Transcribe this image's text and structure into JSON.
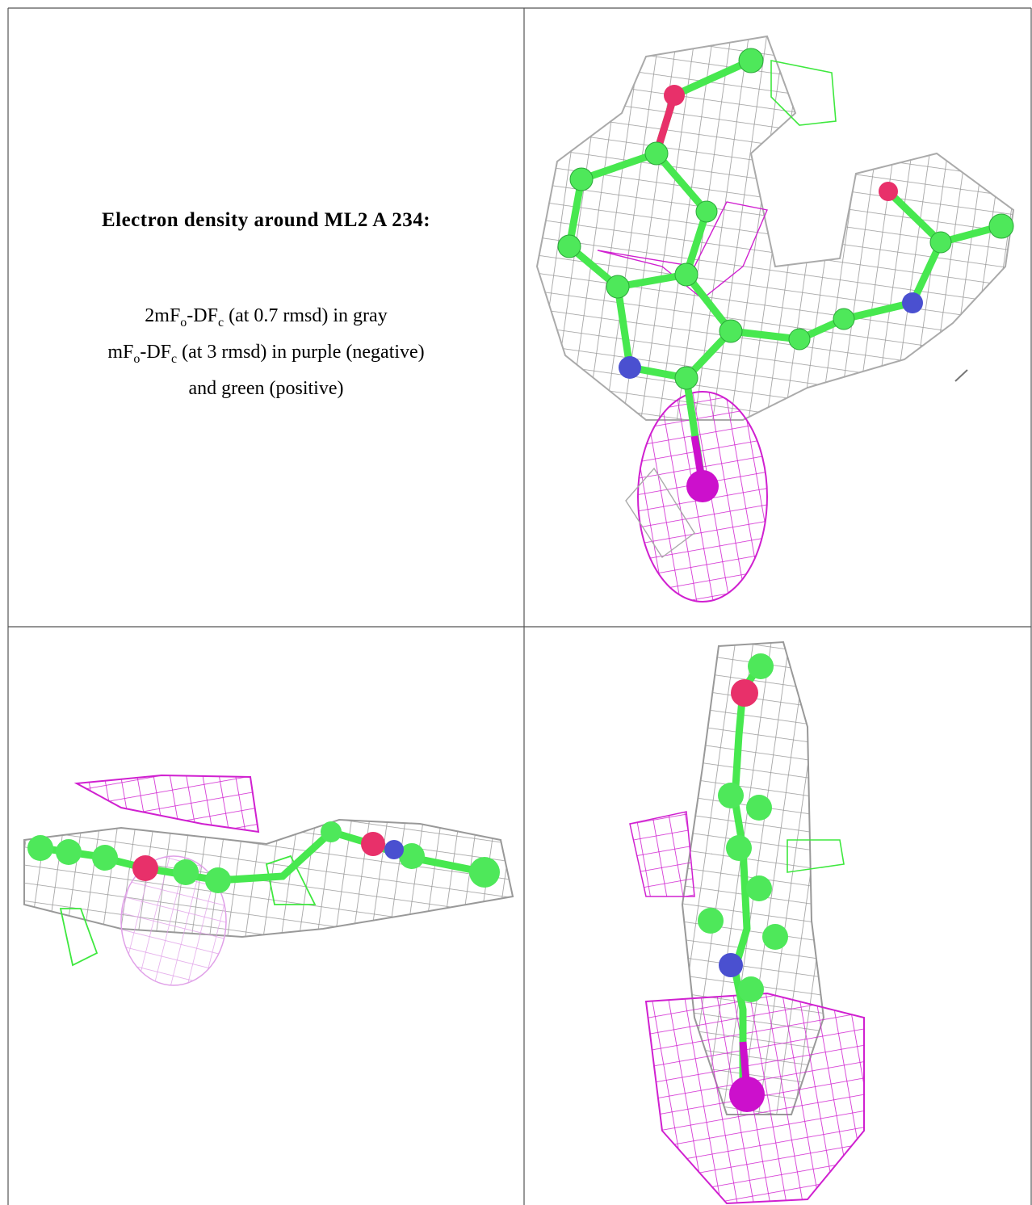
{
  "caption": {
    "title": "Electron density around ML2 A 234:",
    "lines": [
      [
        "2mF",
        "o",
        "-DF",
        "c",
        " (at 0.7 rmsd) in gray"
      ],
      [
        "mF",
        "o",
        "-DF",
        "c",
        " (at 3 rmsd) in purple (negative)"
      ],
      [
        "and green (positive)"
      ]
    ]
  }
}
